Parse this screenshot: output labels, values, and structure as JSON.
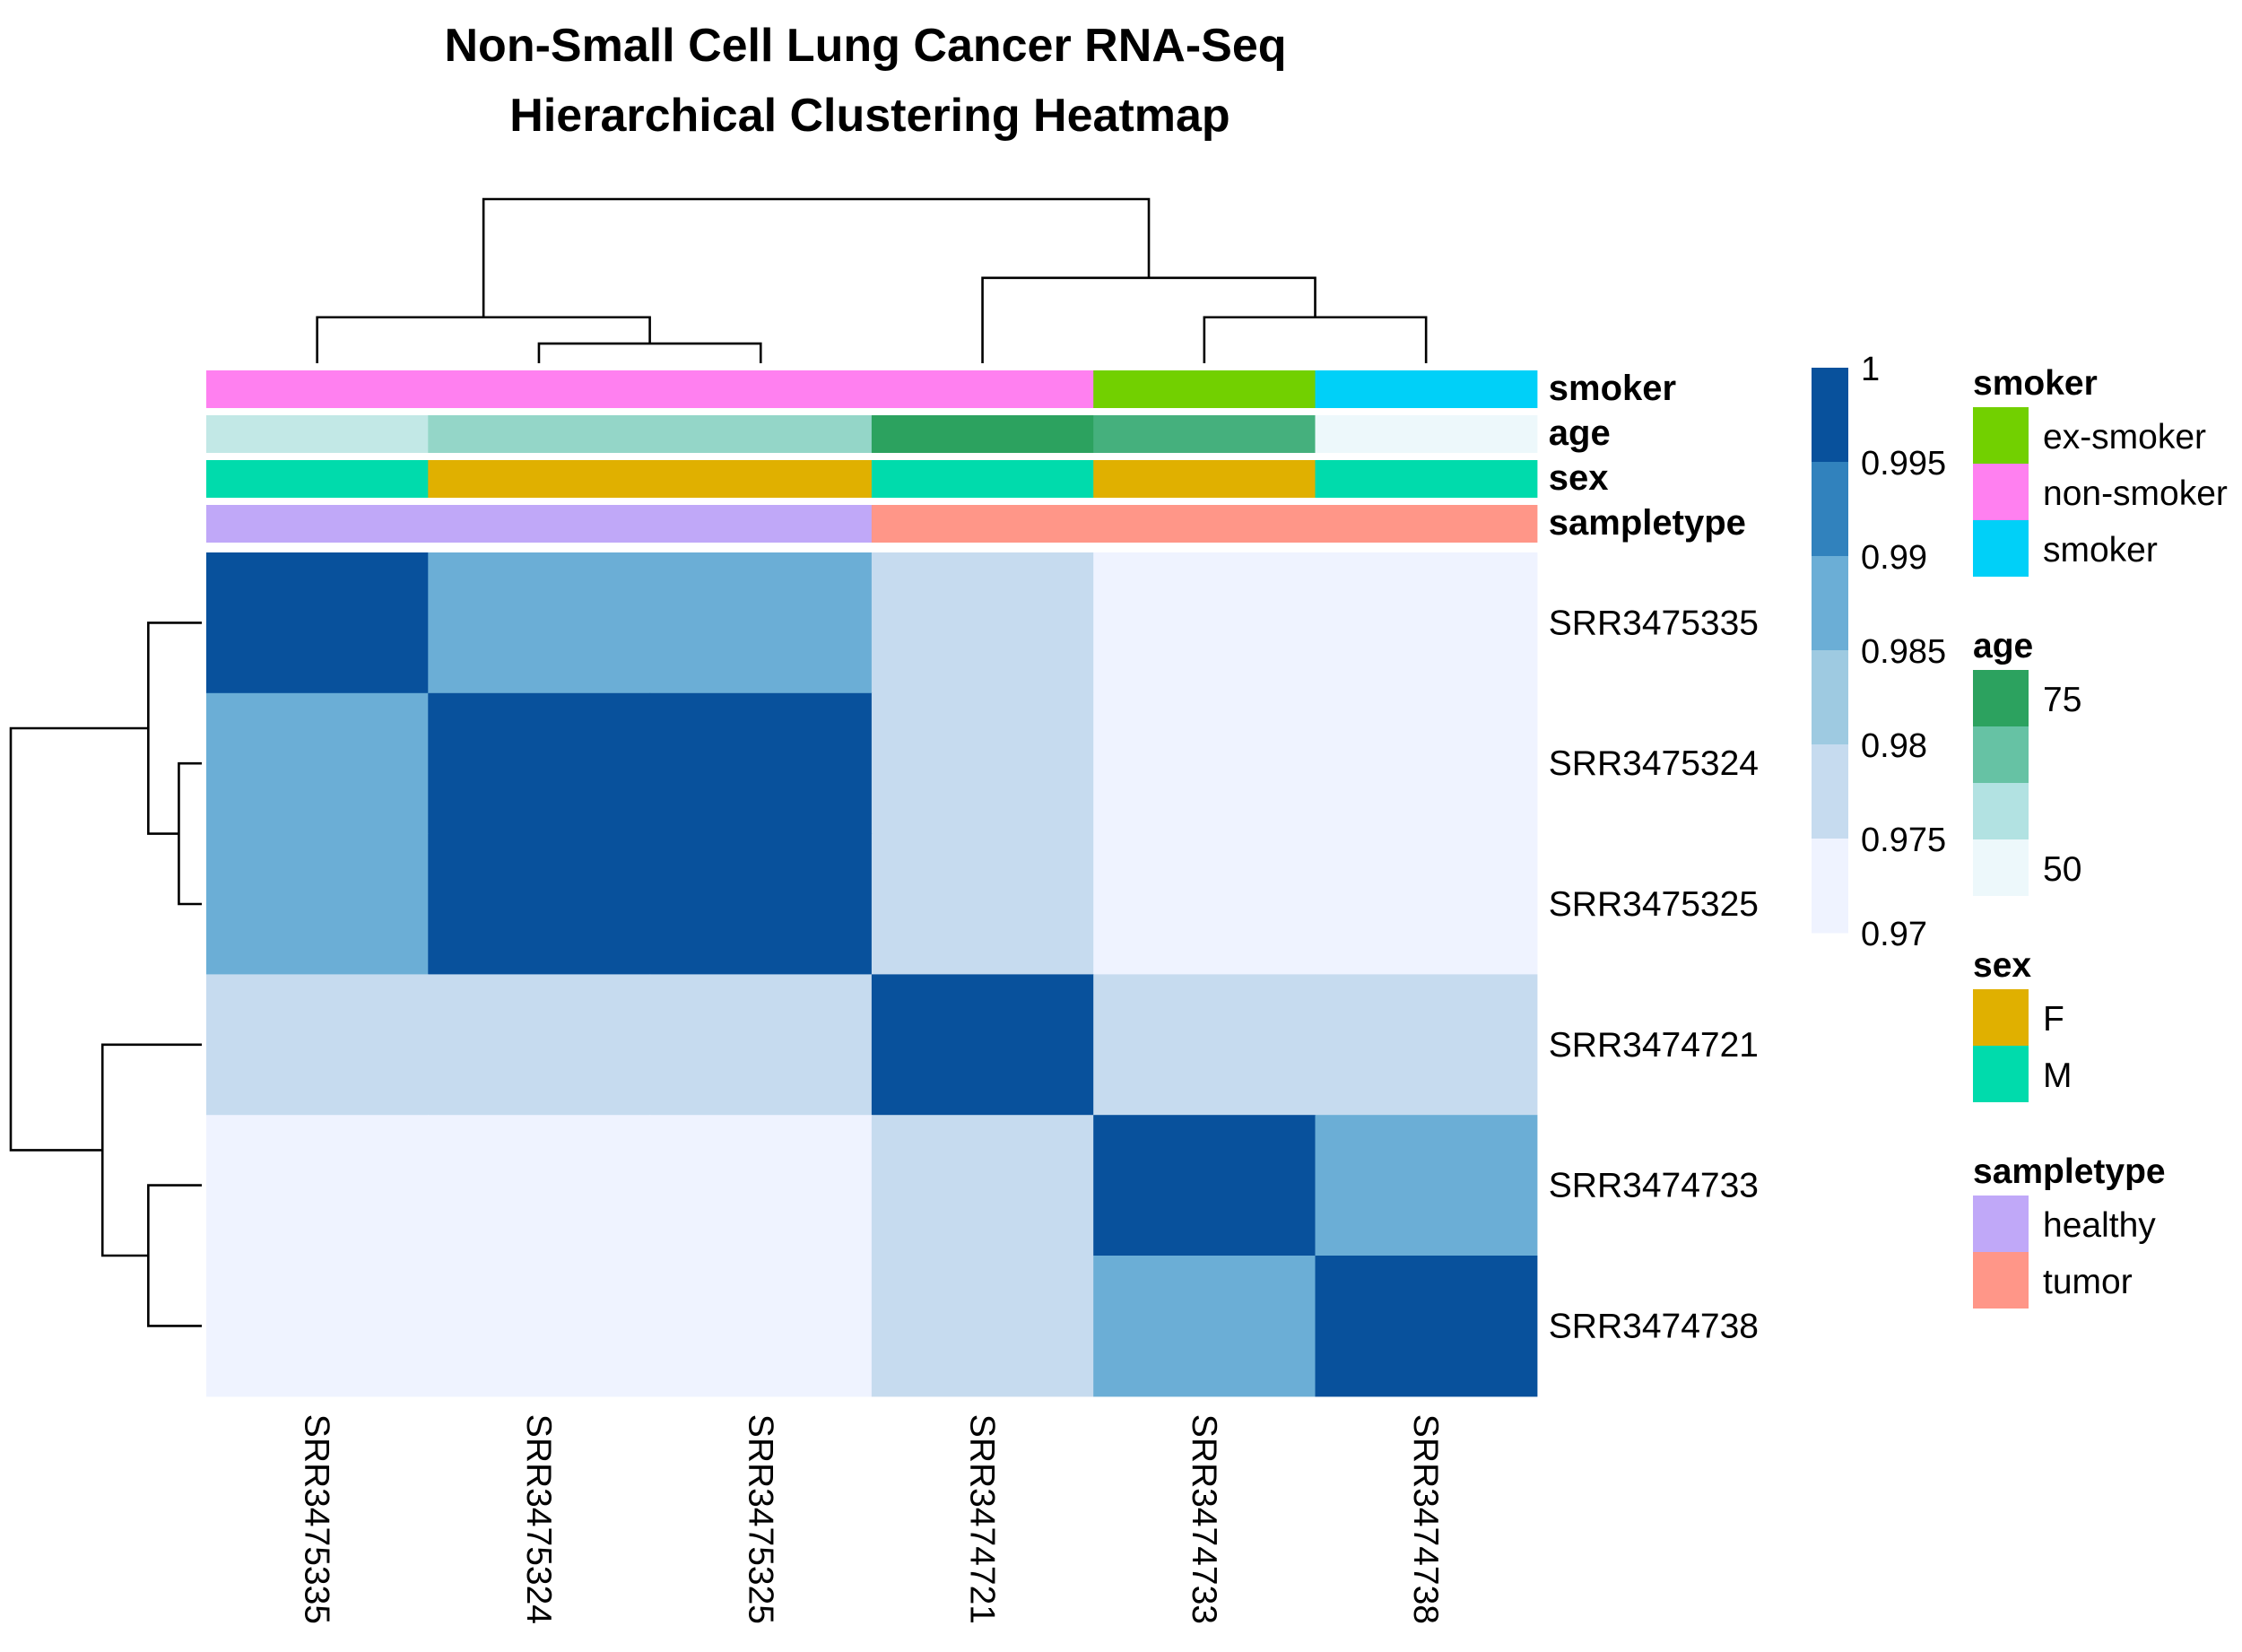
{
  "chart_data": {
    "type": "heatmap",
    "title": "Non-Small Cell Lung Cancer RNA-Seq",
    "subtitle": "Hierarchical Clustering Heatmap",
    "rows": [
      "SRR3475335",
      "SRR3475324",
      "SRR3475325",
      "SRR3474721",
      "SRR3474733",
      "SRR3474738"
    ],
    "columns": [
      "SRR3475335",
      "SRR3475324",
      "SRR3475325",
      "SRR3474721",
      "SRR3474733",
      "SRR3474738"
    ],
    "values": [
      [
        1.0,
        0.986,
        0.986,
        0.975,
        0.971,
        0.971
      ],
      [
        0.986,
        1.0,
        1.0,
        0.975,
        0.971,
        0.971
      ],
      [
        0.986,
        1.0,
        1.0,
        0.975,
        0.971,
        0.971
      ],
      [
        0.975,
        0.975,
        0.975,
        1.0,
        0.975,
        0.975
      ],
      [
        0.971,
        0.971,
        0.971,
        0.975,
        1.0,
        0.986
      ],
      [
        0.971,
        0.971,
        0.971,
        0.975,
        0.986,
        1.0
      ]
    ],
    "color_scale": {
      "breaks": [
        1,
        0.995,
        0.99,
        0.985,
        0.98,
        0.975,
        0.97
      ],
      "labels": [
        "1",
        "0.995",
        "0.99",
        "0.985",
        "0.98",
        "0.975",
        "0.97"
      ],
      "colors": [
        "#08519c",
        "#3182bd",
        "#6baed6",
        "#9ecae1",
        "#c6dbef",
        "#eff3ff"
      ]
    },
    "annotations": [
      {
        "name": "smoker",
        "values": [
          "non-smoker",
          "non-smoker",
          "non-smoker",
          "non-smoker",
          "ex-smoker",
          "smoker"
        ]
      },
      {
        "name": "age",
        "values": [
          58,
          66,
          66,
          80,
          75,
          50
        ]
      },
      {
        "name": "sex",
        "values": [
          "M",
          "F",
          "F",
          "M",
          "F",
          "M"
        ]
      },
      {
        "name": "sampletype",
        "values": [
          "healthy",
          "healthy",
          "healthy",
          "tumor",
          "tumor",
          "tumor"
        ]
      }
    ],
    "legends": [
      {
        "title": "smoker",
        "kind": "discrete",
        "items": [
          {
            "label": "ex-smoker",
            "color": "#72d000"
          },
          {
            "label": "non-smoker",
            "color": "#ff80f0"
          },
          {
            "label": "smoker",
            "color": "#00d0f8"
          }
        ]
      },
      {
        "title": "age",
        "kind": "continuous",
        "min_label": "50",
        "max_label": "75",
        "colors": [
          "#2ca25f",
          "#66c2a4",
          "#b2e2e2",
          "#edf8fb"
        ]
      },
      {
        "title": "sex",
        "kind": "discrete",
        "items": [
          {
            "label": "F",
            "color": "#e0b000"
          },
          {
            "label": "M",
            "color": "#00dbac"
          }
        ]
      },
      {
        "title": "sampletype",
        "kind": "discrete",
        "items": [
          {
            "label": "healthy",
            "color": "#c0a8f8"
          },
          {
            "label": "tumor",
            "color": "#ff9688"
          }
        ]
      }
    ],
    "column_dendrogram": [
      [
        1,
        2,
        0.12
      ],
      [
        0,
        "1+2",
        0.28
      ],
      [
        4,
        5,
        0.28
      ],
      [
        3,
        "4+5",
        0.52
      ],
      [
        "0+1+2",
        "3+4+5",
        1.0
      ]
    ],
    "row_dendrogram": [
      [
        1,
        2,
        0.12
      ],
      [
        0,
        "1+2",
        0.28
      ],
      [
        4,
        5,
        0.28
      ],
      [
        3,
        "4+5",
        0.52
      ],
      [
        "0+1+2",
        "3+4+5",
        1.0
      ]
    ]
  }
}
